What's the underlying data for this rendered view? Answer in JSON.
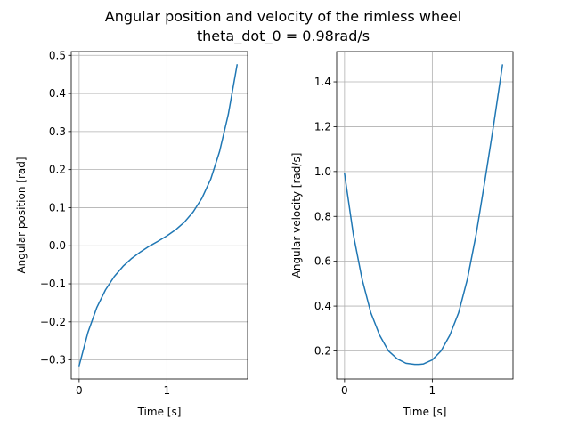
{
  "figure": {
    "title_line1": "Angular position and velocity of the rimless wheel",
    "title_line2": "theta_dot_0 = 0.98rad/s"
  },
  "chart_data": [
    {
      "type": "line",
      "xlabel": "Time [s]",
      "ylabel": "Angular position [rad]",
      "xlim": [
        -0.09,
        1.92
      ],
      "ylim": [
        -0.35,
        0.51
      ],
      "xticks": [
        0,
        1
      ],
      "xtick_labels": [
        "0",
        "1"
      ],
      "yticks": [
        -0.3,
        -0.2,
        -0.1,
        0.0,
        0.1,
        0.2,
        0.3,
        0.4,
        0.5
      ],
      "ytick_labels": [
        "−0.3",
        "−0.2",
        "−0.1",
        "0.0",
        "0.1",
        "0.2",
        "0.3",
        "0.4",
        "0.5"
      ],
      "grid": true,
      "color": "#1f77b4",
      "series": [
        {
          "x": [
            0.0,
            0.1,
            0.2,
            0.3,
            0.4,
            0.5,
            0.6,
            0.7,
            0.8,
            0.9,
            1.0,
            1.1,
            1.2,
            1.3,
            1.4,
            1.5,
            1.6,
            1.7,
            1.8
          ],
          "values": [
            -0.315,
            -0.228,
            -0.163,
            -0.116,
            -0.081,
            -0.054,
            -0.033,
            -0.016,
            -0.001,
            0.012,
            0.026,
            0.042,
            0.062,
            0.089,
            0.125,
            0.175,
            0.247,
            0.345,
            0.475
          ]
        }
      ]
    },
    {
      "type": "line",
      "xlabel": "Time [s]",
      "ylabel": "Angular velocity [rad/s]",
      "xlim": [
        -0.09,
        1.92
      ],
      "ylim": [
        0.075,
        1.535
      ],
      "xticks": [
        0,
        1
      ],
      "xtick_labels": [
        "0",
        "1"
      ],
      "yticks": [
        0.2,
        0.4,
        0.6,
        0.8,
        1.0,
        1.2,
        1.4
      ],
      "ytick_labels": [
        "0.2",
        "0.4",
        "0.6",
        "0.8",
        "1.0",
        "1.2",
        "1.4"
      ],
      "grid": true,
      "color": "#1f77b4",
      "series": [
        {
          "x": [
            0.0,
            0.1,
            0.2,
            0.3,
            0.4,
            0.5,
            0.6,
            0.7,
            0.8,
            0.85,
            0.9,
            1.0,
            1.1,
            1.2,
            1.3,
            1.4,
            1.5,
            1.6,
            1.7,
            1.8
          ],
          "values": [
            0.99,
            0.72,
            0.52,
            0.37,
            0.27,
            0.2,
            0.165,
            0.145,
            0.14,
            0.14,
            0.142,
            0.16,
            0.2,
            0.27,
            0.37,
            0.52,
            0.72,
            0.96,
            1.21,
            1.475
          ]
        }
      ]
    }
  ]
}
